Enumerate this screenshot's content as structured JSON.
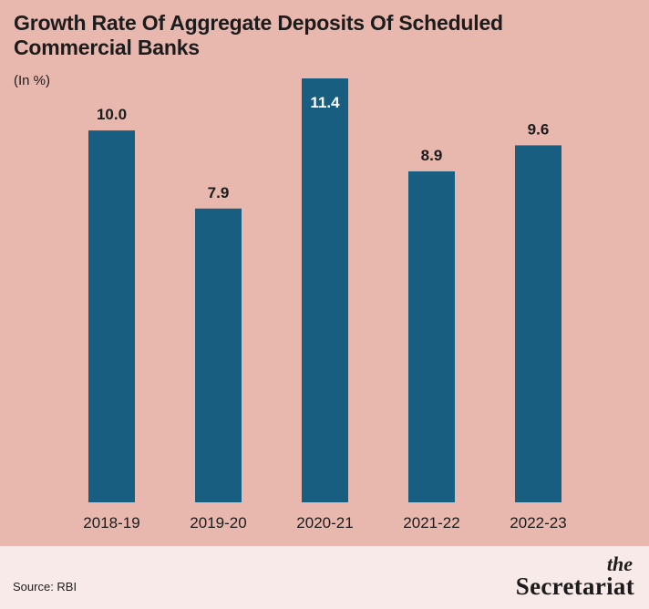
{
  "title": "Growth Rate Of Aggregate Deposits Of Scheduled Commercial Banks",
  "unit": "(In %)",
  "source": "Source: RBI",
  "logo": {
    "the": "the",
    "name": "Secretariat"
  },
  "colors": {
    "background": "#E8B7AE",
    "bar": "#175E80",
    "footer": "#F8EAE8",
    "text": "#1c1c1c",
    "inner_label": "#FFFFFF"
  },
  "chart_data": {
    "type": "bar",
    "title": "Growth Rate Of Aggregate Deposits Of Scheduled Commercial Banks",
    "ylabel": "(In %)",
    "xlabel": "",
    "categories": [
      "2018-19",
      "2019-20",
      "2020-21",
      "2021-22",
      "2022-23"
    ],
    "values": [
      10.0,
      7.9,
      11.4,
      8.9,
      9.6
    ],
    "value_labels": [
      "10.0",
      "7.9",
      "11.4",
      "8.9",
      "9.6"
    ],
    "ylim": [
      0,
      11.4
    ],
    "grid": false,
    "legend": "none"
  }
}
